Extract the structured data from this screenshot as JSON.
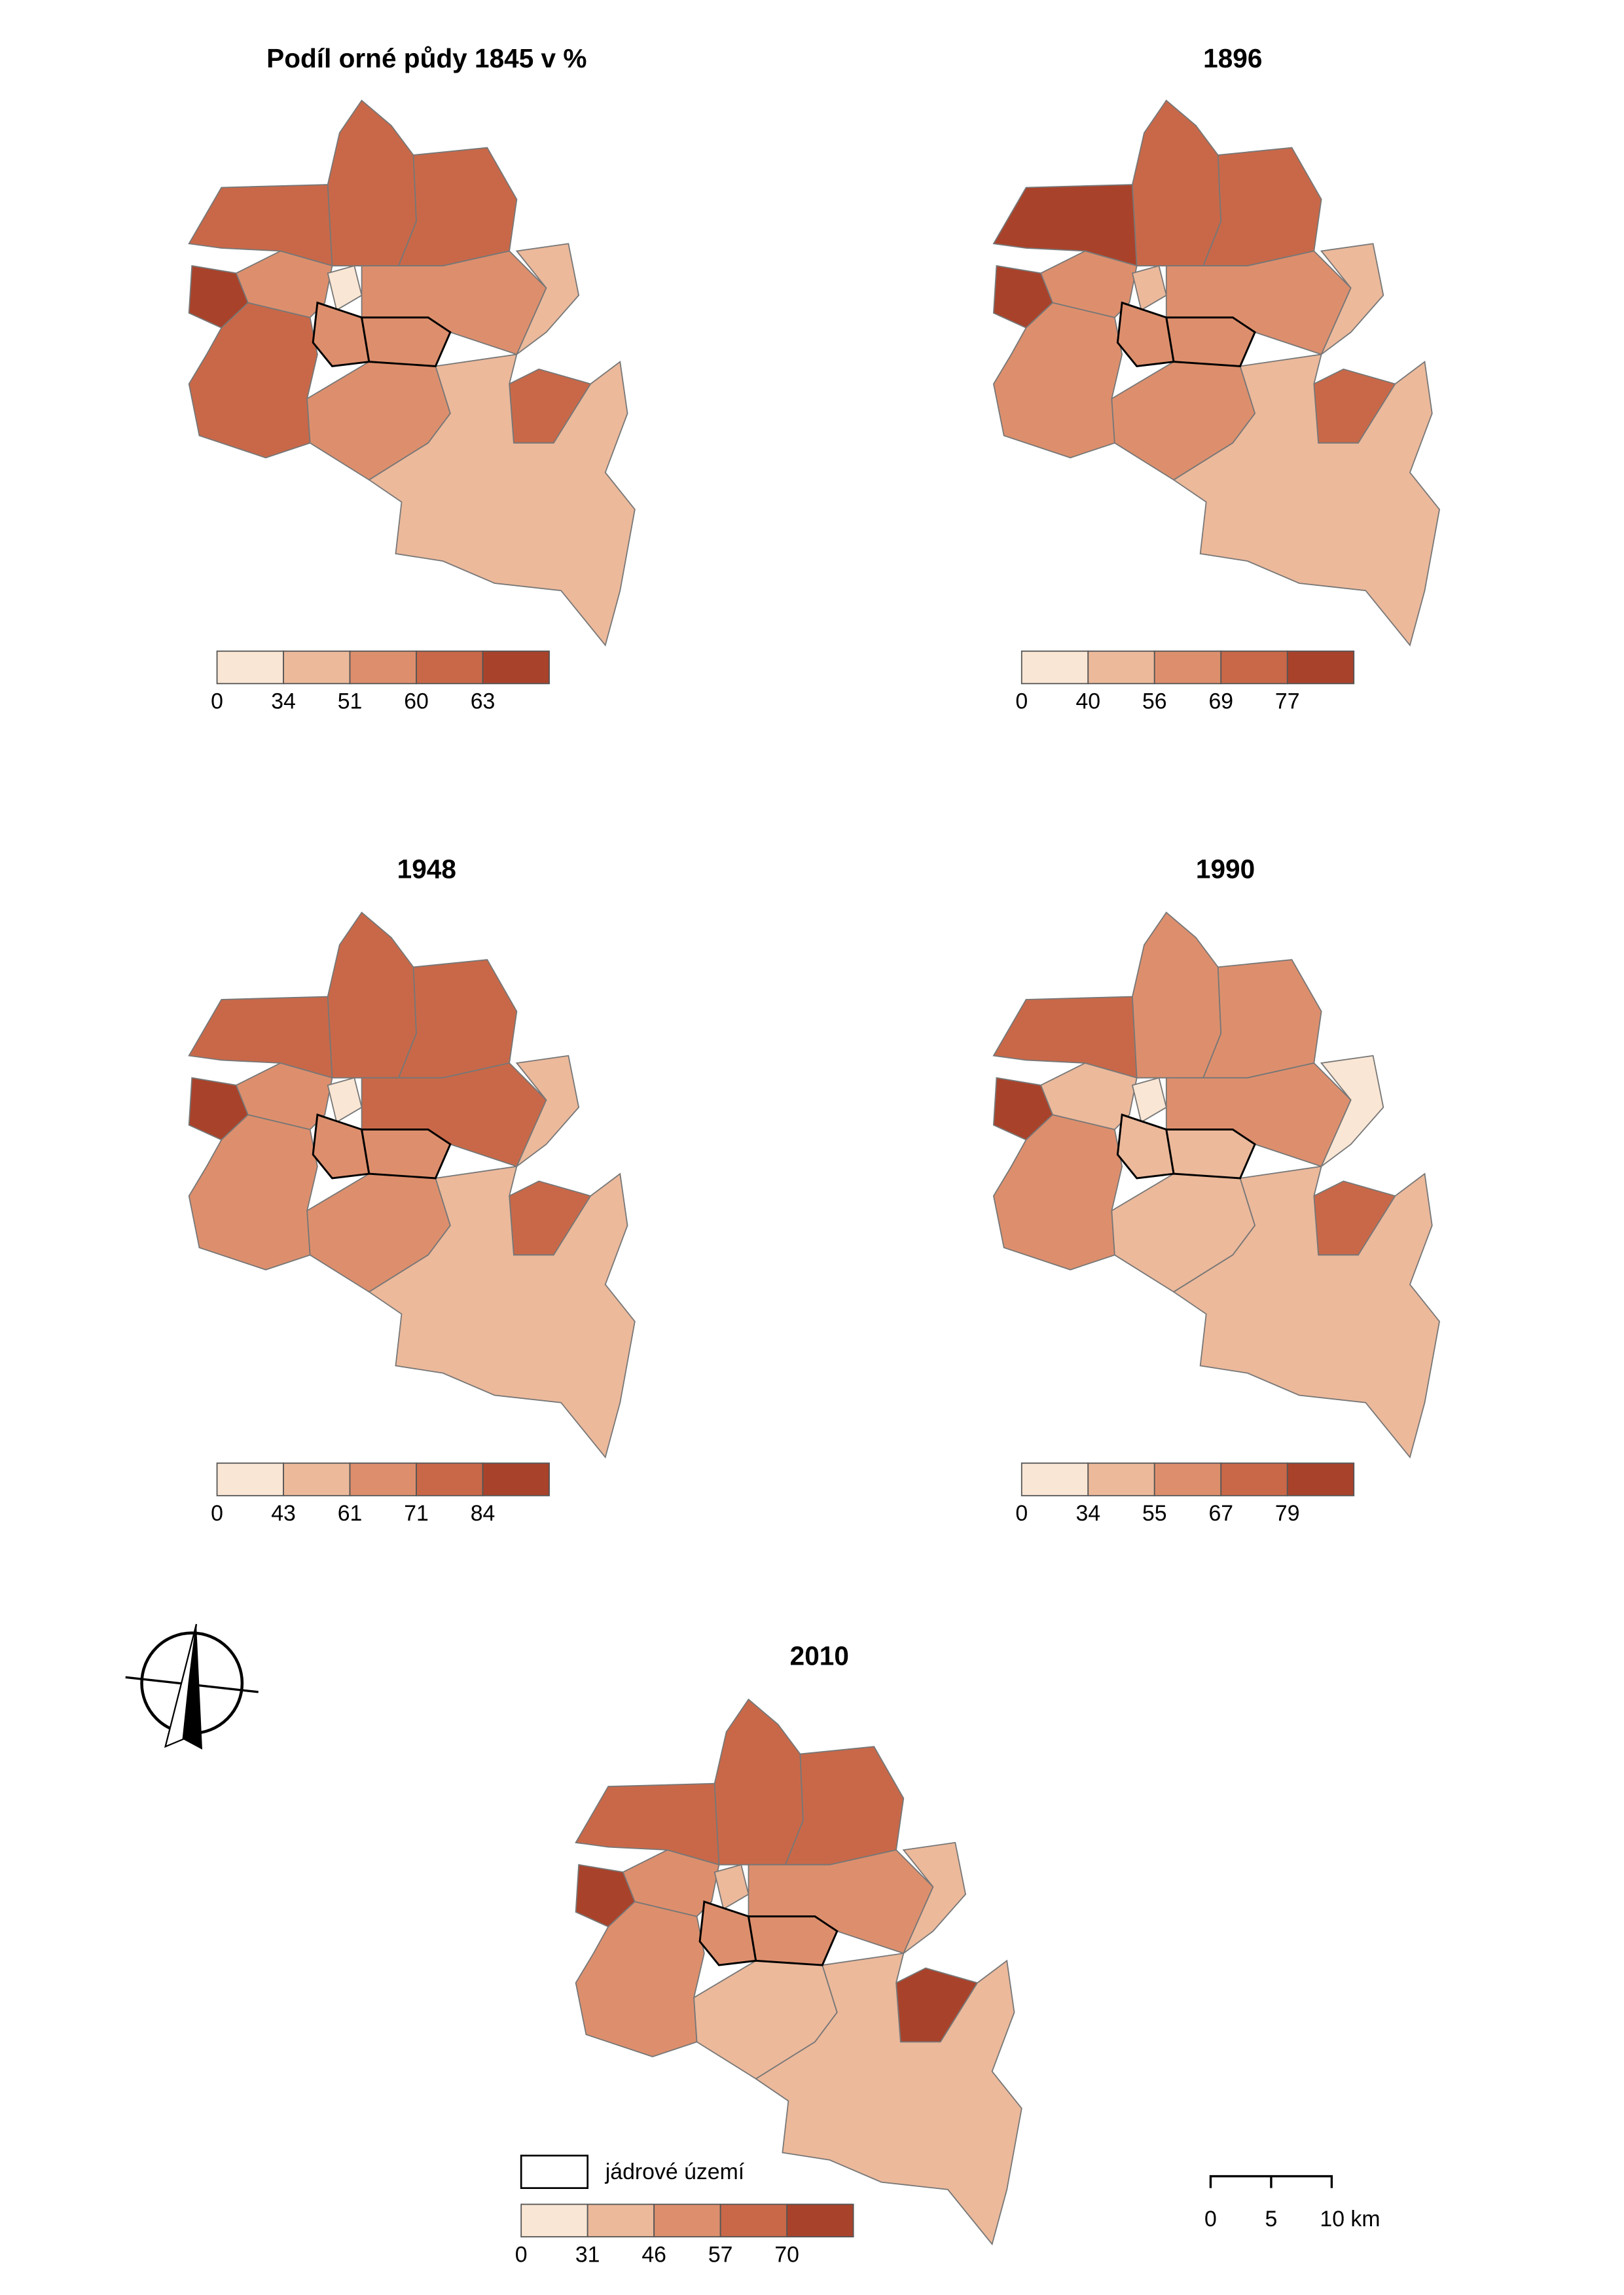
{
  "legend_colors": [
    "#fae6d4",
    "#ecb99b",
    "#dd8f6d",
    "#c96848",
    "#a9422a"
  ],
  "maps": [
    {
      "title": "Podíl orné půdy 1845 v %",
      "legend": [
        0,
        34,
        51,
        60,
        63
      ]
    },
    {
      "title": "1896",
      "legend": [
        0,
        40,
        56,
        69,
        77
      ]
    },
    {
      "title": "1948",
      "legend": [
        0,
        43,
        61,
        71,
        84
      ]
    },
    {
      "title": "1990",
      "legend": [
        0,
        34,
        55,
        67,
        79
      ]
    },
    {
      "title": "2010",
      "legend": [
        0,
        31,
        46,
        57,
        70
      ]
    }
  ],
  "core_legend": "jádrové území",
  "scale_bar": [
    "0",
    "5",
    "10 km"
  ]
}
